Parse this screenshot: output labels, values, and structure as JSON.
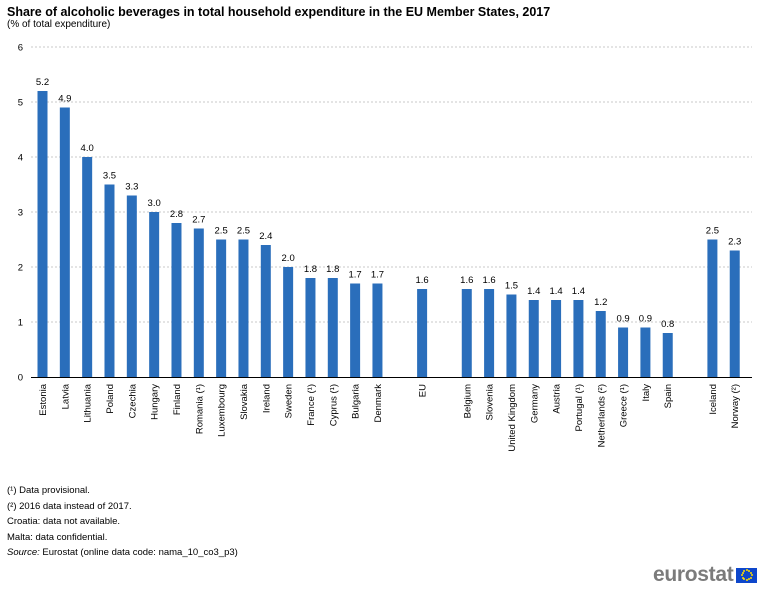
{
  "chart_data": {
    "type": "bar",
    "title": "Share of alcoholic beverages in total household expenditure in the EU Member States, 2017",
    "subtitle": "(% of total expenditure)",
    "ylim": [
      0,
      6
    ],
    "yticks": [
      "0",
      "1",
      "2",
      "3",
      "4",
      "5",
      "6"
    ],
    "grid": true,
    "bar_color": "#2a6ebb",
    "categories": [
      "Estonia",
      "Latvia",
      "Lithuania",
      "Poland",
      "Czechia",
      "Hungary",
      "Finland",
      "Romania (¹)",
      "Luxembourg",
      "Slovakia",
      "Ireland",
      "Sweden",
      "France (¹)",
      "Cyprus (¹)",
      "Bulgaria",
      "Denmark",
      "",
      "EU",
      "",
      "Belgium",
      "Slovenia",
      "United Kingdom",
      "Germany",
      "Austria",
      "Portugal (¹)",
      "Netherlands (²)",
      "Greece (¹)",
      "Italy",
      "Spain",
      "",
      "Iceland",
      "Norway (²)"
    ],
    "values": [
      5.2,
      4.9,
      4.0,
      3.5,
      3.3,
      3.0,
      2.8,
      2.7,
      2.5,
      2.5,
      2.4,
      2.0,
      1.8,
      1.8,
      1.7,
      1.7,
      null,
      1.6,
      null,
      1.6,
      1.6,
      1.5,
      1.4,
      1.4,
      1.4,
      1.2,
      0.9,
      0.9,
      0.8,
      null,
      2.5,
      2.3
    ],
    "value_labels": [
      "5.2",
      "4.9",
      "4.0",
      "3.5",
      "3.3",
      "3.0",
      "2.8",
      "2.7",
      "2.5",
      "2.5",
      "2.4",
      "2.0",
      "1.8",
      "1.8",
      "1.7",
      "1.7",
      "",
      "1.6",
      "",
      "1.6",
      "1.6",
      "1.5",
      "1.4",
      "1.4",
      "1.4",
      "1.2",
      "0.9",
      "0.9",
      "0.8",
      "",
      "2.5",
      "2.3"
    ]
  },
  "notes": {
    "note1": "(¹) Data provisional.",
    "note2": "(²) 2016 data instead of 2017.",
    "note3": "Croatia: data not available.",
    "note4": "Malta: data confidential.",
    "source_label": "Source:",
    "source_text": " Eurostat (online data code: nama_10_co3_p3)"
  },
  "logo": {
    "text": "eurostat",
    "text_color": "#7b7b7b",
    "flag_color": "#0e47cb",
    "star_color": "#ffdd00"
  }
}
